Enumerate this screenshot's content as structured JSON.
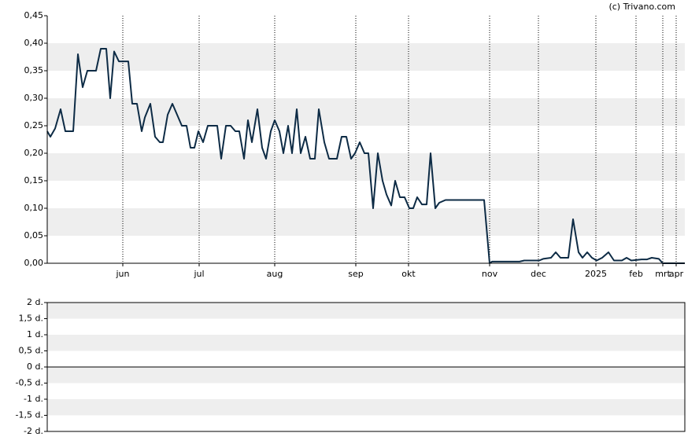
{
  "chart_data": [
    {
      "type": "line",
      "annotation": "(c) Trivano.com",
      "xlim": [
        0,
        810
      ],
      "xticks": [
        {
          "value": 96,
          "label": "jun"
        },
        {
          "value": 193,
          "label": "jul"
        },
        {
          "value": 289,
          "label": "aug"
        },
        {
          "value": 392,
          "label": "sep"
        },
        {
          "value": 459,
          "label": "okt"
        },
        {
          "value": 562,
          "label": "nov"
        },
        {
          "value": 624,
          "label": "dec"
        },
        {
          "value": 697,
          "label": "2025"
        },
        {
          "value": 748,
          "label": "feb"
        },
        {
          "value": 782,
          "label": "mrt"
        },
        {
          "value": 799,
          "label": "apr"
        }
      ],
      "ylim": [
        0,
        0.45
      ],
      "yticks": [
        {
          "value": 0,
          "label": "0,00"
        },
        {
          "value": 0.05,
          "label": "0,05"
        },
        {
          "value": 0.1,
          "label": "0,10"
        },
        {
          "value": 0.15,
          "label": "0,15"
        },
        {
          "value": 0.2,
          "label": "0,20"
        },
        {
          "value": 0.25,
          "label": "0,25"
        },
        {
          "value": 0.3,
          "label": "0,30"
        },
        {
          "value": 0.35,
          "label": "0,35"
        },
        {
          "value": 0.4,
          "label": "0,40"
        },
        {
          "value": 0.45,
          "label": "0,45"
        }
      ],
      "bands": true,
      "xgrid": true,
      "series": [
        {
          "color": "#0d2b45",
          "x": [
            0,
            4,
            10,
            17,
            23,
            33,
            39,
            45,
            51,
            62,
            68,
            75,
            80,
            85,
            91,
            103,
            108,
            114,
            120,
            124,
            131,
            137,
            143,
            147,
            153,
            159,
            165,
            171,
            177,
            182,
            187,
            192,
            198,
            204,
            216,
            221,
            227,
            233,
            239,
            244,
            250,
            255,
            260,
            267,
            273,
            278,
            284,
            289,
            295,
            300,
            306,
            311,
            317,
            322,
            328,
            334,
            340,
            345,
            352,
            358,
            368,
            374,
            380,
            386,
            391,
            397,
            403,
            408,
            414,
            420,
            426,
            431,
            437,
            442,
            448,
            454,
            460,
            465,
            470,
            476,
            482,
            487,
            493,
            498,
            506,
            555,
            562,
            565,
            600,
            606,
            625,
            630,
            640,
            646,
            652,
            662,
            668,
            675,
            680,
            686,
            692,
            698,
            705,
            713,
            720,
            730,
            736,
            742,
            755,
            762,
            768,
            777,
            782,
            810
          ],
          "values": [
            0.24,
            0.23,
            0.245,
            0.28,
            0.24,
            0.24,
            0.38,
            0.32,
            0.35,
            0.35,
            0.39,
            0.39,
            0.3,
            0.385,
            0.367,
            0.367,
            0.29,
            0.29,
            0.24,
            0.265,
            0.29,
            0.23,
            0.22,
            0.22,
            0.27,
            0.29,
            0.27,
            0.25,
            0.25,
            0.21,
            0.21,
            0.24,
            0.22,
            0.25,
            0.25,
            0.19,
            0.25,
            0.25,
            0.24,
            0.24,
            0.19,
            0.26,
            0.22,
            0.28,
            0.21,
            0.19,
            0.24,
            0.26,
            0.24,
            0.2,
            0.25,
            0.2,
            0.28,
            0.2,
            0.23,
            0.19,
            0.19,
            0.28,
            0.22,
            0.19,
            0.19,
            0.23,
            0.23,
            0.19,
            0.2,
            0.22,
            0.2,
            0.2,
            0.1,
            0.2,
            0.15,
            0.125,
            0.105,
            0.15,
            0.12,
            0.12,
            0.1,
            0.1,
            0.12,
            0.107,
            0.107,
            0.2,
            0.1,
            0.11,
            0.115,
            0.115,
            0.0,
            0.003,
            0.003,
            0.005,
            0.005,
            0.008,
            0.01,
            0.02,
            0.01,
            0.01,
            0.08,
            0.02,
            0.01,
            0.02,
            0.01,
            0.005,
            0.01,
            0.02,
            0.005,
            0.005,
            0.01,
            0.005,
            0.007,
            0.007,
            0.01,
            0.008,
            0.0,
            0.0
          ]
        }
      ]
    },
    {
      "type": "volume",
      "ylim": [
        -2,
        2
      ],
      "yticks": [
        {
          "value": -2,
          "label": "-2 d."
        },
        {
          "value": -1.5,
          "label": "-1,5 d."
        },
        {
          "value": -1,
          "label": "-1 d."
        },
        {
          "value": -0.5,
          "label": "-0,5 d."
        },
        {
          "value": 0,
          "label": "0 d."
        },
        {
          "value": 0.5,
          "label": "0,5 d."
        },
        {
          "value": 1,
          "label": "1 d."
        },
        {
          "value": 1.5,
          "label": "1,5 d."
        },
        {
          "value": 2,
          "label": "2 d."
        }
      ],
      "bands": true
    }
  ]
}
